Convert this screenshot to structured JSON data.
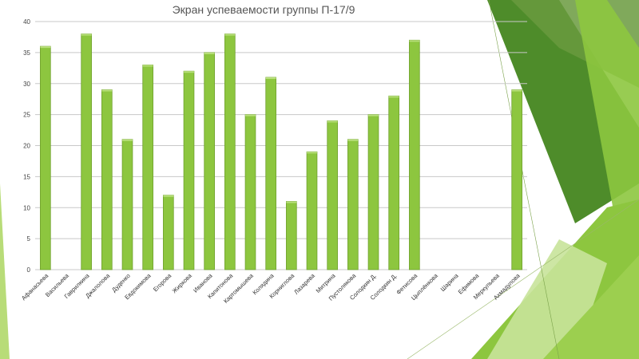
{
  "slide": {
    "accent_colors": [
      "#8dc63f",
      "#4e8c2a",
      "#b8dc78",
      "#6a9a3e"
    ]
  },
  "chart_data": {
    "type": "bar",
    "title": "Экран успеваемости группы П-17/9",
    "xlabel": "",
    "ylabel": "",
    "ylim": [
      0,
      40
    ],
    "yticks": [
      0,
      5,
      10,
      15,
      20,
      25,
      30,
      35,
      40
    ],
    "grid": true,
    "legend": "none",
    "bar_color": "#8dc63f",
    "categories": [
      "Афанасьева",
      "Васильева",
      "Гаврилкина",
      "Джалолова",
      "Дуденко",
      "Евдокимова",
      "Егорова",
      "Жиркова",
      "Иванова",
      "Капитонова",
      "Картомышева",
      "Колядина",
      "Корниглова",
      "Лазарева",
      "Митрина",
      "Пустолякова",
      "Солодкин Д.",
      "Солодкин Д.",
      "Фетисова",
      "Цыплёнкова",
      "Шарина",
      "Ефимова",
      "Меркульева",
      "Ахмадулова"
    ],
    "values": [
      36,
      0,
      38,
      29,
      21,
      33,
      12,
      32,
      35,
      38,
      25,
      31,
      11,
      19,
      24,
      21,
      25,
      28,
      37,
      0,
      0,
      0,
      0,
      29
    ]
  }
}
